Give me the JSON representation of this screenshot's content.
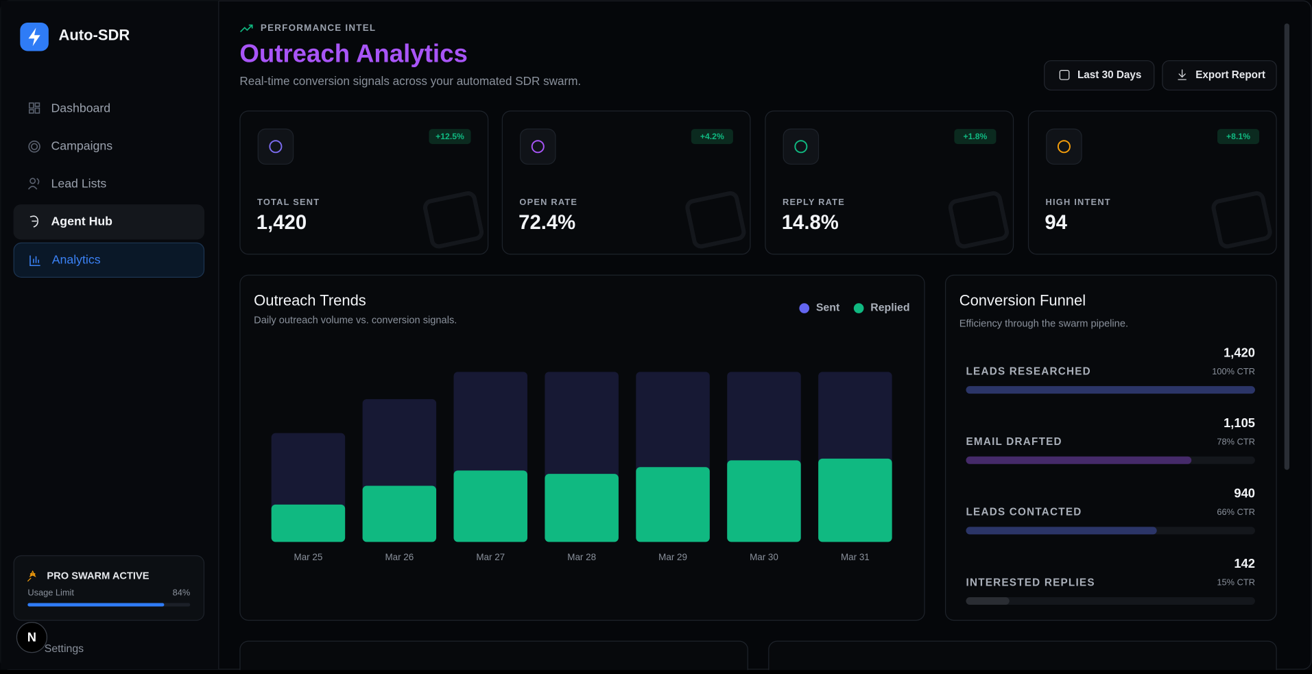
{
  "sidebar": {
    "brand": "Auto-SDR",
    "nav": [
      "Dashboard",
      "Campaigns",
      "Lead Lists",
      "Agent Hub",
      "Analytics"
    ],
    "plan": {
      "title": "PRO SWARM ACTIVE",
      "usage_label": "Usage Limit",
      "usage": 84,
      "usage_text": "84%"
    },
    "settings": "Settings",
    "avatar": "N"
  },
  "header": {
    "eyebrow": "PERFORMANCE INTEL",
    "title": "Outreach Analytics",
    "subtitle": "Real-time conversion signals across your automated SDR swarm.",
    "buttons": [
      "Last 30 Days",
      "Export Report"
    ]
  },
  "kpis": [
    {
      "label": "TOTAL SENT",
      "value": "1,420",
      "change": "+12.5%"
    },
    {
      "label": "OPEN RATE",
      "value": "72.4%",
      "change": "+4.2%"
    },
    {
      "label": "REPLY RATE",
      "value": "14.8%",
      "change": "+1.8%"
    },
    {
      "label": "HIGH INTENT",
      "value": "94",
      "change": "+8.1%"
    }
  ],
  "chart_data": {
    "type": "bar",
    "title": "Outreach Trends",
    "subtitle": "Daily outreach volume vs. conversion signals.",
    "categories": [
      "Mar 25",
      "Mar 26",
      "Mar 27",
      "Mar 28",
      "Mar 29",
      "Mar 30",
      "Mar 31"
    ],
    "series": [
      {
        "name": "Sent",
        "color": "#6366f1",
        "values": [
          64,
          84,
          100,
          100,
          100,
          100,
          100
        ]
      },
      {
        "name": "Replied",
        "color": "#10b981",
        "values": [
          22,
          33,
          42,
          40,
          44,
          48,
          49
        ]
      }
    ]
  },
  "funnel": {
    "title": "Conversion Funnel",
    "subtitle": "Efficiency through the swarm pipeline.",
    "stages": [
      {
        "label": "LEADS RESEARCHED",
        "value": "1,420",
        "ctr": 100,
        "ctr_label": "100% CTR",
        "color": "#2b3568"
      },
      {
        "label": "EMAIL DRAFTED",
        "value": "1,105",
        "ctr": 78,
        "ctr_label": "78% CTR",
        "color": "#452a6a"
      },
      {
        "label": "LEADS CONTACTED",
        "value": "940",
        "ctr": 66,
        "ctr_label": "66% CTR",
        "color": "#2b3568"
      },
      {
        "label": "INTERESTED REPLIES",
        "value": "142",
        "ctr": 15,
        "ctr_label": "15% CTR",
        "color": "#2a2d33"
      }
    ]
  }
}
